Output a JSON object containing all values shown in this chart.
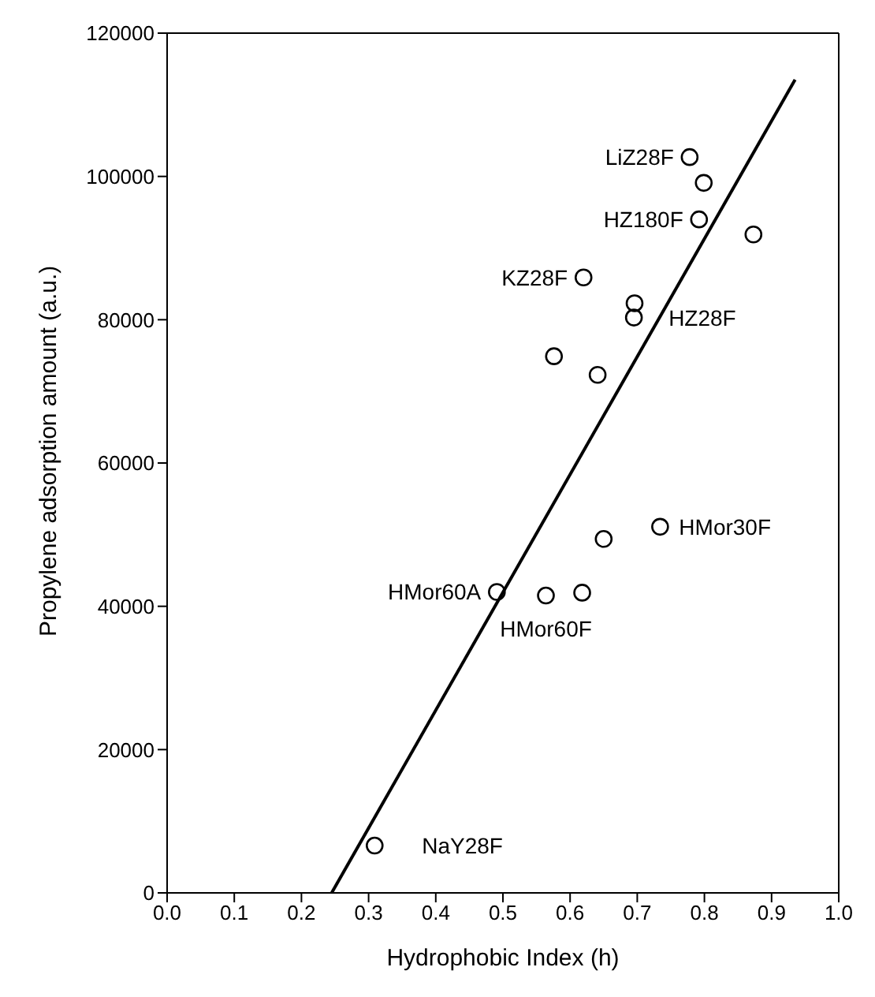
{
  "chart_data": {
    "type": "scatter",
    "xlabel": "Hydrophobic Index (h)",
    "ylabel": "Propylene adsorption amount (a.u.)",
    "xlim": [
      0,
      1
    ],
    "xticks": [
      {
        "value": 0,
        "label": "0.0"
      },
      0.1,
      0.2,
      0.3,
      0.4,
      0.5,
      0.6,
      0.7,
      0.8,
      0.9,
      {
        "value": 1,
        "label": "1.0"
      }
    ],
    "ylim": [
      0,
      120000
    ],
    "yticks": [
      0,
      20000,
      40000,
      60000,
      80000,
      100000,
      120000
    ],
    "legend": false,
    "marker": "circle",
    "series": [
      {
        "color": "#000000",
        "x": [
          0.778,
          0.799,
          0.792,
          0.873,
          0.62,
          0.696,
          0.695,
          0.576,
          0.641,
          0.734,
          0.65,
          0.491,
          0.564,
          0.618,
          0.309
        ],
        "values": [
          102700,
          99100,
          94000,
          91900,
          85900,
          82300,
          80300,
          74900,
          72300,
          51100,
          49400,
          42000,
          41500,
          41900,
          6600
        ]
      },
      {
        "type": "line",
        "color": "#000000",
        "line_style": "solid",
        "marker": "none",
        "x": [
          0.245,
          0.935
        ],
        "values": [
          0,
          113500
        ]
      }
    ],
    "annotations": [
      {
        "text": "LiZ28F",
        "x": 0.778,
        "y": 102700
      },
      {
        "text": "HZ180F",
        "x": 0.792,
        "y": 94000
      },
      {
        "text": "KZ28F",
        "x": 0.62,
        "y": 85900
      },
      {
        "text": "HZ28F",
        "x": 0.695,
        "y": 80300
      },
      {
        "text": "HMor30F",
        "x": 0.734,
        "y": 51100
      },
      {
        "text": "HMor60A",
        "x": 0.491,
        "y": 42000
      },
      {
        "text": "HMor60F",
        "x": 0.564,
        "y": 41500
      },
      {
        "text": "NaY28F",
        "x": 0.309,
        "y": 6600
      }
    ]
  }
}
